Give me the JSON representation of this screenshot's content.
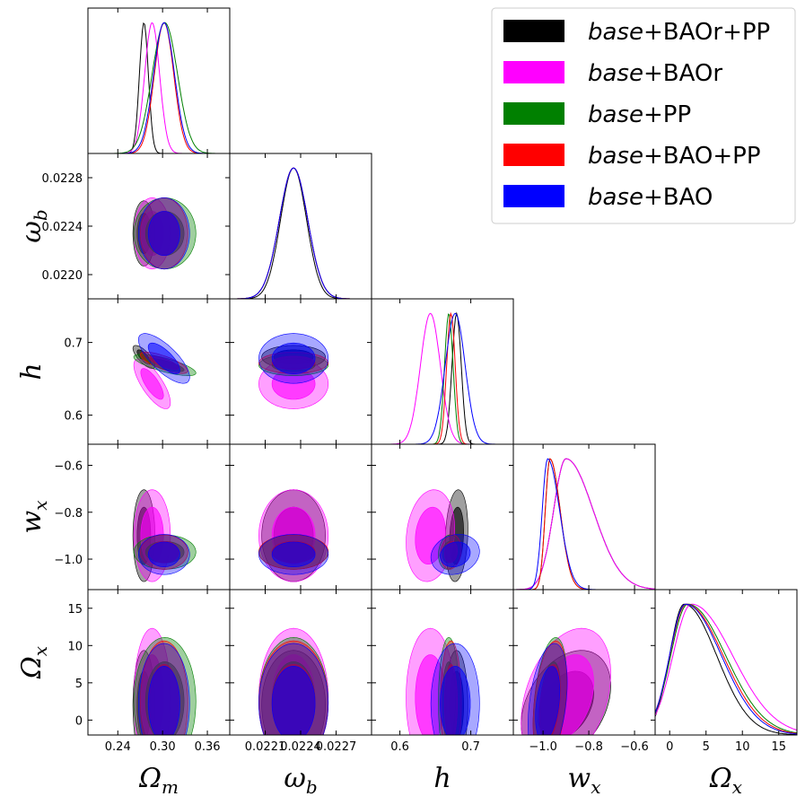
{
  "chart_data": {
    "type": "corner",
    "parameters": [
      {
        "symbol": "Ω",
        "sub": "m",
        "ticks": [
          0.24,
          0.3,
          0.36
        ],
        "tick_labels": [
          "0.24",
          "0.30",
          "0.36"
        ],
        "range": [
          0.2,
          0.39
        ]
      },
      {
        "symbol": "ω",
        "sub": "b",
        "ticks": [
          0.0221,
          0.0224,
          0.0227
        ],
        "tick_labels": [
          "0.0221",
          "0.0224",
          "0.0227"
        ],
        "range": [
          0.0218,
          0.023
        ],
        "y_ticks": [
          0.022,
          0.0224,
          0.0228
        ],
        "y_tick_labels": [
          "0.0220",
          "0.0224",
          "0.0228"
        ]
      },
      {
        "symbol": "h",
        "sub": "",
        "ticks": [
          0.6,
          0.7
        ],
        "tick_labels": [
          "0.6",
          "0.7"
        ],
        "range": [
          0.56,
          0.76
        ]
      },
      {
        "symbol": "w",
        "sub": "x",
        "ticks": [
          -1.0,
          -0.8,
          -0.6
        ],
        "tick_labels": [
          "−1.0",
          "−0.8",
          "−0.6"
        ],
        "range": [
          -1.13,
          -0.51
        ]
      },
      {
        "symbol": "Ω",
        "sub": "x",
        "ticks": [
          0,
          5,
          10,
          15
        ],
        "tick_labels": [
          "0",
          "5",
          "10",
          "15"
        ],
        "range": [
          -2,
          17.5
        ]
      }
    ],
    "series": [
      {
        "name": "base+BAOr+PP",
        "name_italic": "base",
        "name_rest": "+BAOr+PP",
        "color": "#000000",
        "fill_alpha": 0.42,
        "fill_color": "#000000",
        "mean": [
          0.275,
          0.02234,
          0.68,
          -0.9,
          2.0
        ],
        "sd": [
          0.006,
          0.00011,
          0.0065,
          0.08,
          3.0
        ]
      },
      {
        "name": "base+BAOr",
        "name_italic": "base",
        "name_rest": "+BAOr",
        "color": "#ff00ff",
        "fill_alpha": 0.42,
        "fill_color": "#ff00ff",
        "mean": [
          0.286,
          0.02234,
          0.643,
          -0.9,
          3.0
        ],
        "sd": [
          0.01,
          0.00012,
          0.014,
          0.08,
          3.8
        ]
      },
      {
        "name": "base+PP",
        "name_italic": "base",
        "name_rest": "+PP",
        "color": "#008000",
        "fill_alpha": 0.42,
        "fill_color": "#008000",
        "mean": [
          0.303,
          0.02234,
          0.669,
          -0.97,
          2.5
        ],
        "sd": [
          0.017,
          0.00012,
          0.006,
          0.03,
          3.5
        ]
      },
      {
        "name": "base+BAO+PP",
        "name_italic": "base",
        "name_rest": "+BAO+PP",
        "color": "#ff0000",
        "fill_alpha": 0.42,
        "fill_color": "#ff0000",
        "mean": [
          0.302,
          0.02234,
          0.672,
          -0.97,
          2.3
        ],
        "sd": [
          0.013,
          0.00012,
          0.006,
          0.03,
          3.4
        ]
      },
      {
        "name": "base+BAO",
        "name_italic": "base",
        "name_rest": "+BAO",
        "color": "#0000ff",
        "fill_alpha": 0.38,
        "fill_color": "#0000ff",
        "mean": [
          0.302,
          0.02234,
          0.678,
          -0.98,
          2.2
        ],
        "sd": [
          0.014,
          0.00012,
          0.014,
          0.035,
          3.3
        ]
      }
    ],
    "legend_position": "top-right"
  }
}
